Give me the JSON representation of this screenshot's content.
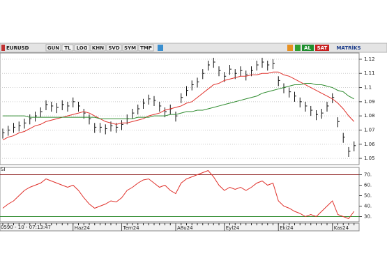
{
  "toolbar": {
    "symbol": "EURUSD",
    "buttons": [
      "GUN",
      "TL",
      "LOG",
      "KHN",
      "SVD",
      "SYM",
      "TMP"
    ],
    "buy": "AL",
    "sell": "SAT",
    "brand": "MATRİKS"
  },
  "status": "0590 - 10 - 07:13:47",
  "chart_data": {
    "type": "ohlc",
    "categories": [
      null,
      null,
      null,
      null,
      null,
      null,
      null,
      null,
      null,
      null,
      null,
      null,
      null,
      "Haz24",
      null,
      null,
      null,
      null,
      null,
      null,
      null,
      null,
      "Tem24",
      null,
      null,
      null,
      null,
      null,
      null,
      null,
      null,
      null,
      "A8u24",
      null,
      null,
      null,
      null,
      null,
      null,
      null,
      null,
      "Eyl24",
      null,
      null,
      null,
      null,
      null,
      null,
      null,
      null,
      null,
      "Eki24",
      null,
      null,
      null,
      null,
      null,
      null,
      null,
      null,
      null,
      "Kas24",
      null,
      null,
      null,
      null
    ],
    "high": [
      1.071,
      1.073,
      1.075,
      1.076,
      1.078,
      1.081,
      1.083,
      1.086,
      1.091,
      1.09,
      1.089,
      1.091,
      1.09,
      1.093,
      1.09,
      1.085,
      1.081,
      1.075,
      1.075,
      1.074,
      1.076,
      1.075,
      1.077,
      1.081,
      1.085,
      1.088,
      1.092,
      1.095,
      1.094,
      1.09,
      1.086,
      1.088,
      1.083,
      1.096,
      1.101,
      1.105,
      1.107,
      1.113,
      1.119,
      1.121,
      1.115,
      1.111,
      1.116,
      1.113,
      1.115,
      1.112,
      1.115,
      1.119,
      1.121,
      1.119,
      1.12,
      1.108,
      1.103,
      1.1,
      1.097,
      1.093,
      1.09,
      1.087,
      1.084,
      1.085,
      1.09,
      1.096,
      1.079,
      1.068,
      1.058,
      1.062
    ],
    "low": [
      1.064,
      1.066,
      1.068,
      1.069,
      1.071,
      1.074,
      1.076,
      1.079,
      1.084,
      1.083,
      1.082,
      1.084,
      1.083,
      1.086,
      1.083,
      1.078,
      1.074,
      1.068,
      1.068,
      1.067,
      1.069,
      1.068,
      1.07,
      1.074,
      1.078,
      1.081,
      1.085,
      1.088,
      1.087,
      1.083,
      1.079,
      1.081,
      1.076,
      1.089,
      1.094,
      1.098,
      1.1,
      1.106,
      1.112,
      1.114,
      1.108,
      1.104,
      1.109,
      1.106,
      1.108,
      1.105,
      1.108,
      1.112,
      1.114,
      1.112,
      1.113,
      1.101,
      1.096,
      1.093,
      1.09,
      1.086,
      1.083,
      1.08,
      1.077,
      1.078,
      1.083,
      1.089,
      1.072,
      1.061,
      1.051,
      1.055
    ],
    "close": [
      1.068,
      1.07,
      1.072,
      1.073,
      1.075,
      1.078,
      1.08,
      1.083,
      1.088,
      1.087,
      1.086,
      1.088,
      1.087,
      1.09,
      1.087,
      1.082,
      1.078,
      1.072,
      1.072,
      1.071,
      1.073,
      1.072,
      1.074,
      1.078,
      1.082,
      1.085,
      1.089,
      1.092,
      1.091,
      1.087,
      1.083,
      1.085,
      1.08,
      1.093,
      1.098,
      1.102,
      1.104,
      1.11,
      1.116,
      1.118,
      1.112,
      1.108,
      1.113,
      1.11,
      1.112,
      1.109,
      1.112,
      1.116,
      1.118,
      1.116,
      1.117,
      1.105,
      1.1,
      1.097,
      1.094,
      1.09,
      1.087,
      1.084,
      1.081,
      1.082,
      1.087,
      1.093,
      1.076,
      1.065,
      1.055,
      1.059
    ],
    "bar_color": "#111111",
    "moving_averages": [
      {
        "color": "#e0302a",
        "values": [
          1.063,
          1.065,
          1.066,
          1.068,
          1.069,
          1.071,
          1.073,
          1.074,
          1.076,
          1.077,
          1.078,
          1.079,
          1.08,
          1.081,
          1.082,
          1.083,
          1.082,
          1.08,
          1.078,
          1.076,
          1.075,
          1.074,
          1.075,
          1.075,
          1.076,
          1.077,
          1.078,
          1.08,
          1.081,
          1.082,
          1.084,
          1.085,
          1.086,
          1.087,
          1.089,
          1.09,
          1.093,
          1.096,
          1.099,
          1.102,
          1.103,
          1.105,
          1.106,
          1.107,
          1.108,
          1.108,
          1.109,
          1.109,
          1.11,
          1.11,
          1.111,
          1.111,
          1.109,
          1.108,
          1.106,
          1.104,
          1.102,
          1.1,
          1.098,
          1.096,
          1.094,
          1.092,
          1.089,
          1.085,
          1.08,
          1.076
        ]
      },
      {
        "color": "#2e8b2e",
        "values": [
          1.08,
          1.08,
          1.08,
          1.08,
          1.08,
          1.079,
          1.079,
          1.079,
          1.079,
          1.079,
          1.079,
          1.079,
          1.079,
          1.079,
          1.079,
          1.079,
          1.079,
          1.079,
          1.078,
          1.078,
          1.078,
          1.078,
          1.078,
          1.078,
          1.078,
          1.079,
          1.079,
          1.079,
          1.08,
          1.08,
          1.08,
          1.081,
          1.081,
          1.082,
          1.083,
          1.083,
          1.084,
          1.084,
          1.085,
          1.086,
          1.087,
          1.088,
          1.089,
          1.09,
          1.091,
          1.092,
          1.093,
          1.094,
          1.096,
          1.097,
          1.098,
          1.099,
          1.1,
          1.101,
          1.102,
          1.102,
          1.103,
          1.103,
          1.102,
          1.102,
          1.101,
          1.1,
          1.098,
          1.097,
          1.094,
          1.092
        ]
      }
    ],
    "ylim": [
      1.0456,
      1.1244
    ],
    "yticks": [
      1.05,
      1.06,
      1.07,
      1.08,
      1.09,
      1.1,
      1.11,
      1.12
    ],
    "grid": true,
    "indicator": {
      "type": "line",
      "title": "SI",
      "color": "#e0302a",
      "values": [
        38,
        42,
        45,
        50,
        55,
        58,
        60,
        62,
        66,
        64,
        62,
        60,
        58,
        60,
        55,
        48,
        42,
        38,
        40,
        42,
        45,
        44,
        48,
        55,
        58,
        62,
        65,
        66,
        62,
        58,
        60,
        55,
        52,
        62,
        66,
        68,
        70,
        72,
        74,
        68,
        60,
        55,
        58,
        56,
        58,
        55,
        58,
        62,
        64,
        60,
        62,
        45,
        40,
        38,
        35,
        33,
        30,
        32,
        30,
        35,
        40,
        45,
        32,
        30,
        28,
        35
      ],
      "ylim": [
        25,
        77
      ],
      "yticks": [
        {
          "value": 70,
          "label": "70."
        },
        {
          "value": 60,
          "label": "60."
        },
        {
          "value": 50,
          "label": "50."
        },
        {
          "value": 40,
          "label": "40."
        },
        {
          "value": 30,
          "label": "30."
        }
      ],
      "levels": [
        {
          "value": 70,
          "color": "#8b1a1a"
        },
        {
          "value": 30,
          "color": "#2e8b2e"
        }
      ]
    }
  }
}
